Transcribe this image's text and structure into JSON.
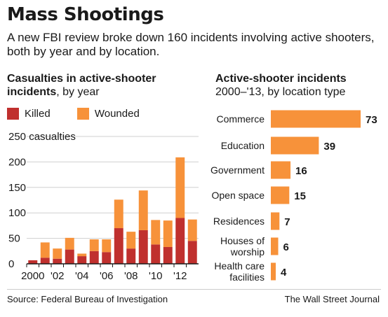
{
  "headline": "Mass Shootings",
  "dek": "A new FBI review broke down 160 incidents involving active shooters, both by year and by location.",
  "colors": {
    "killed": "#c0302e",
    "wounded": "#f7923a",
    "bars": "#f7923a",
    "axis": "#1a1a1a",
    "grid": "#cfcfcf"
  },
  "chart_data": [
    {
      "type": "bar",
      "stacked": true,
      "title_bold": "Casualties in active-shooter incidents",
      "title_rest": ", by year",
      "unit_label": "casualties",
      "categories": [
        "2000",
        "2001",
        "2002",
        "2003",
        "2004",
        "2005",
        "2006",
        "2007",
        "2008",
        "2009",
        "2010",
        "2011",
        "2012",
        "2013"
      ],
      "x_tick_labels": [
        "2000",
        "",
        "'02",
        "",
        "'04",
        "",
        "'06",
        "",
        "'08",
        "",
        "'10",
        "",
        "'12",
        ""
      ],
      "y_ticks": [
        0,
        50,
        100,
        150,
        200,
        250
      ],
      "ylim": [
        0,
        250
      ],
      "grid": true,
      "series": [
        {
          "name": "Killed",
          "values": [
            7,
            12,
            10,
            28,
            15,
            25,
            23,
            70,
            30,
            66,
            38,
            33,
            90,
            45
          ]
        },
        {
          "name": "Wounded",
          "values": [
            0,
            30,
            20,
            23,
            5,
            23,
            25,
            56,
            33,
            78,
            48,
            52,
            119,
            42
          ]
        }
      ]
    },
    {
      "type": "bar",
      "orientation": "horizontal",
      "title_bold": "Active-shooter incidents",
      "subtitle": "2000–'13, by location type",
      "categories": [
        "Commerce",
        "Education",
        "Government",
        "Open space",
        "Residences",
        "Houses of worship",
        "Health care facilities"
      ],
      "category_lines": [
        [
          "Commerce"
        ],
        [
          "Education"
        ],
        [
          "Government"
        ],
        [
          "Open space"
        ],
        [
          "Residences"
        ],
        [
          "Houses of",
          "worship"
        ],
        [
          "Health care",
          "facilities"
        ]
      ],
      "values": [
        73,
        39,
        16,
        15,
        7,
        6,
        4
      ],
      "xlim": [
        0,
        73
      ]
    }
  ],
  "footer": {
    "source": "Source: Federal Bureau of Investigation",
    "publisher": "The Wall Street Journal"
  }
}
